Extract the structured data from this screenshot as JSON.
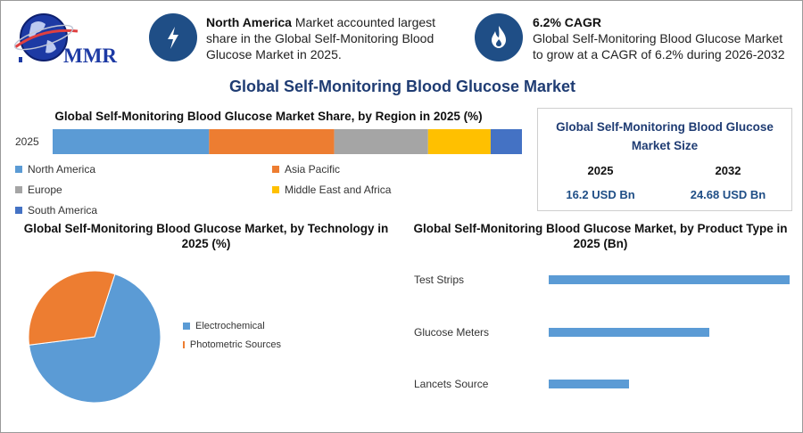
{
  "logo": {
    "text": "MMR"
  },
  "highlights": [
    {
      "icon": "lightning-icon",
      "bold": "North America",
      "text": " Market accounted largest share in the Global Self-Monitoring Blood Glucose Market in 2025."
    },
    {
      "icon": "flame-icon",
      "bold": "6.2% CAGR",
      "text": "Global Self-Monitoring Blood Glucose Market to grow at a CAGR of 6.2% during 2026-2032"
    }
  ],
  "main_title": "Global Self-Monitoring Blood Glucose Market",
  "market_size": {
    "title": "Global Self-Monitoring Blood Glucose Market Size",
    "years": [
      "2025",
      "2032"
    ],
    "values": [
      "16.2 USD Bn",
      "24.68 USD Bn"
    ]
  },
  "colors": {
    "accent": "#1f4e86",
    "blue": "#5b9bd5",
    "orange": "#ed7d31",
    "gray": "#a5a5a5",
    "yellow": "#ffc000",
    "darkblue": "#4472c4"
  },
  "chart_data": [
    {
      "type": "bar",
      "orientation": "horizontal-stacked",
      "title": "Global Self-Monitoring Blood Glucose Market Share, by Region in 2025 (%)",
      "categories": [
        "2025"
      ],
      "series": [
        {
          "name": "North America",
          "values": [
            35
          ],
          "color": "#5b9bd5"
        },
        {
          "name": "Asia Pacific",
          "values": [
            28
          ],
          "color": "#ed7d31"
        },
        {
          "name": "Europe",
          "values": [
            21
          ],
          "color": "#a5a5a5"
        },
        {
          "name": "Middle East and Africa",
          "values": [
            14
          ],
          "color": "#ffc000"
        },
        {
          "name": "South America",
          "values": [
            7
          ],
          "color": "#4472c4"
        }
      ],
      "legend": "bottom"
    },
    {
      "type": "pie",
      "title": "Global Self-Monitoring Blood Glucose Market, by Technology in 2025 (%)",
      "labels": [
        "Electrochemical",
        "Photometric Sources"
      ],
      "values": [
        68,
        32
      ],
      "colors": [
        "#5b9bd5",
        "#ed7d31"
      ],
      "legend": "right"
    },
    {
      "type": "bar",
      "orientation": "horizontal",
      "title": "Global Self-Monitoring Blood Glucose Market, by Product Type in 2025 (Bn)",
      "categories": [
        "Test Strips",
        "Glucose Meters",
        "Lancets Source"
      ],
      "values": [
        9,
        6,
        3
      ],
      "color": "#5b9bd5",
      "xlim": [
        0,
        9
      ]
    }
  ]
}
